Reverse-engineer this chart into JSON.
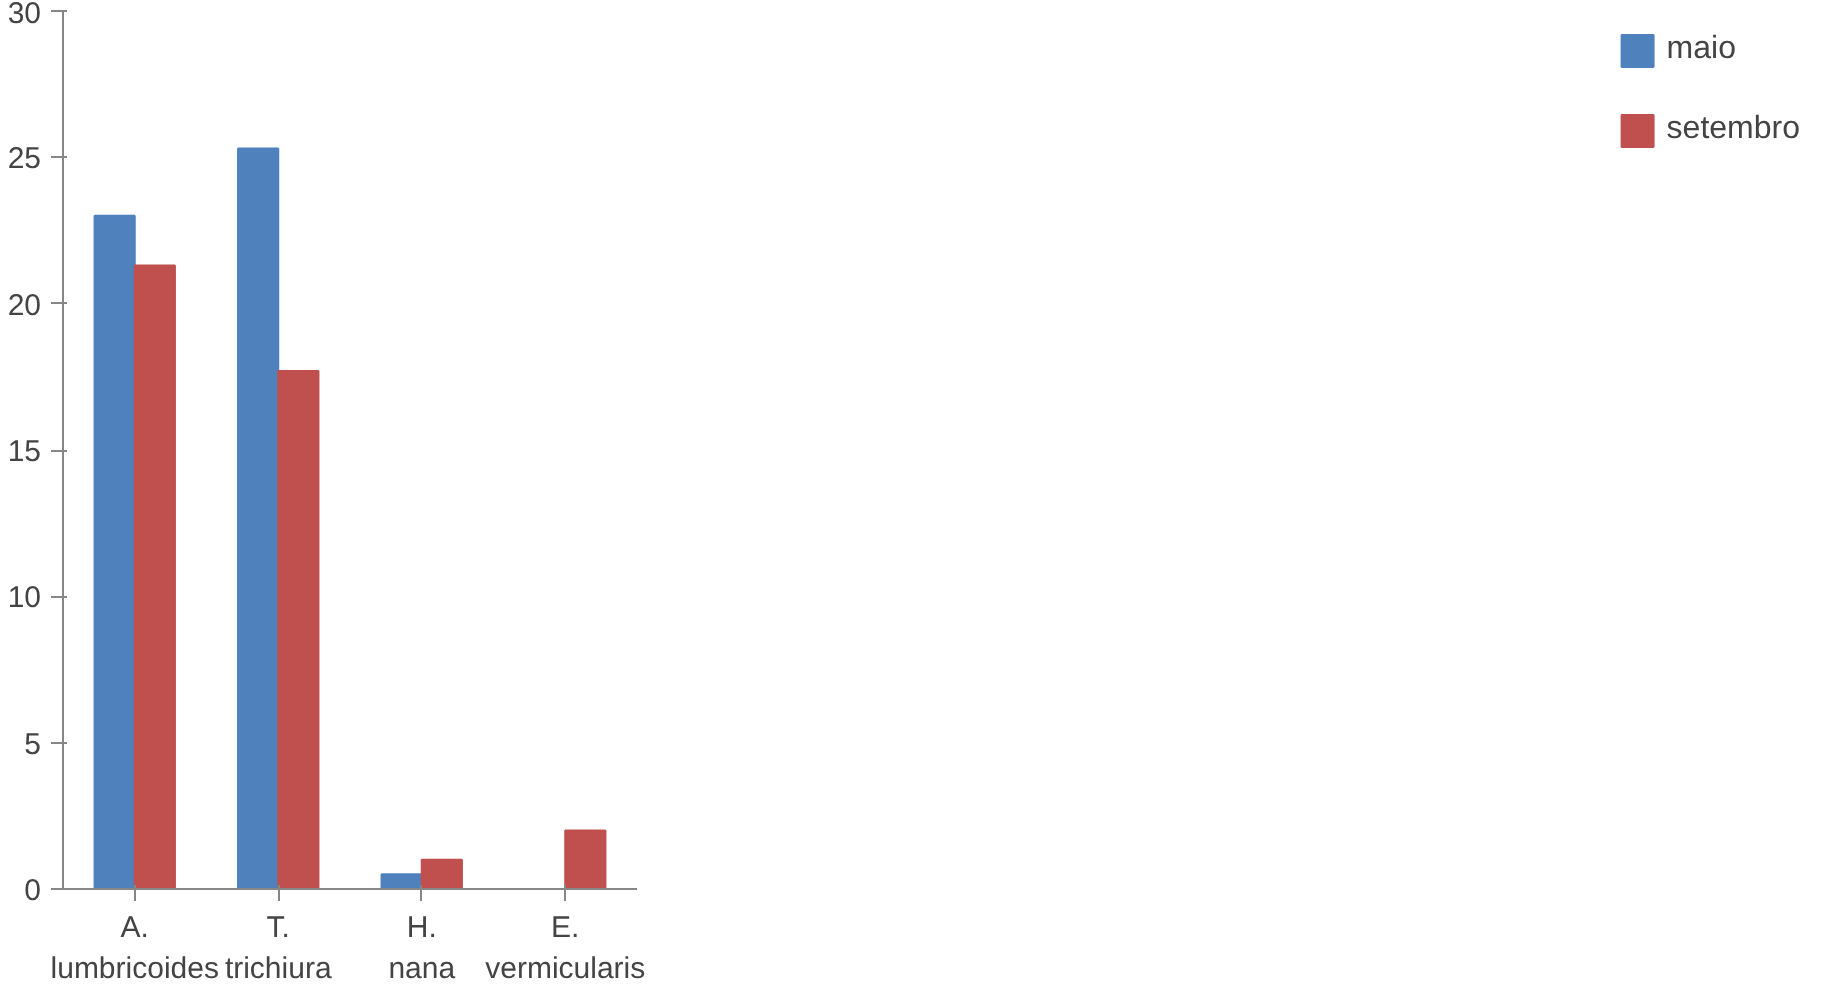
{
  "chart_data": {
    "type": "bar",
    "categories": [
      "A. lumbricoides",
      "T. trichiura",
      "H. nana",
      "E. vermicularis"
    ],
    "series": [
      {
        "name": "maio",
        "color": "#4f81bd",
        "values": [
          23,
          25.3,
          0.5,
          0
        ]
      },
      {
        "name": "setembro",
        "color": "#c0504d",
        "values": [
          21.3,
          17.7,
          1,
          2
        ]
      }
    ],
    "ylim": [
      0,
      30
    ],
    "yticks": [
      0,
      5,
      10,
      15,
      20,
      25,
      30
    ],
    "grid": false,
    "legend": "right"
  }
}
